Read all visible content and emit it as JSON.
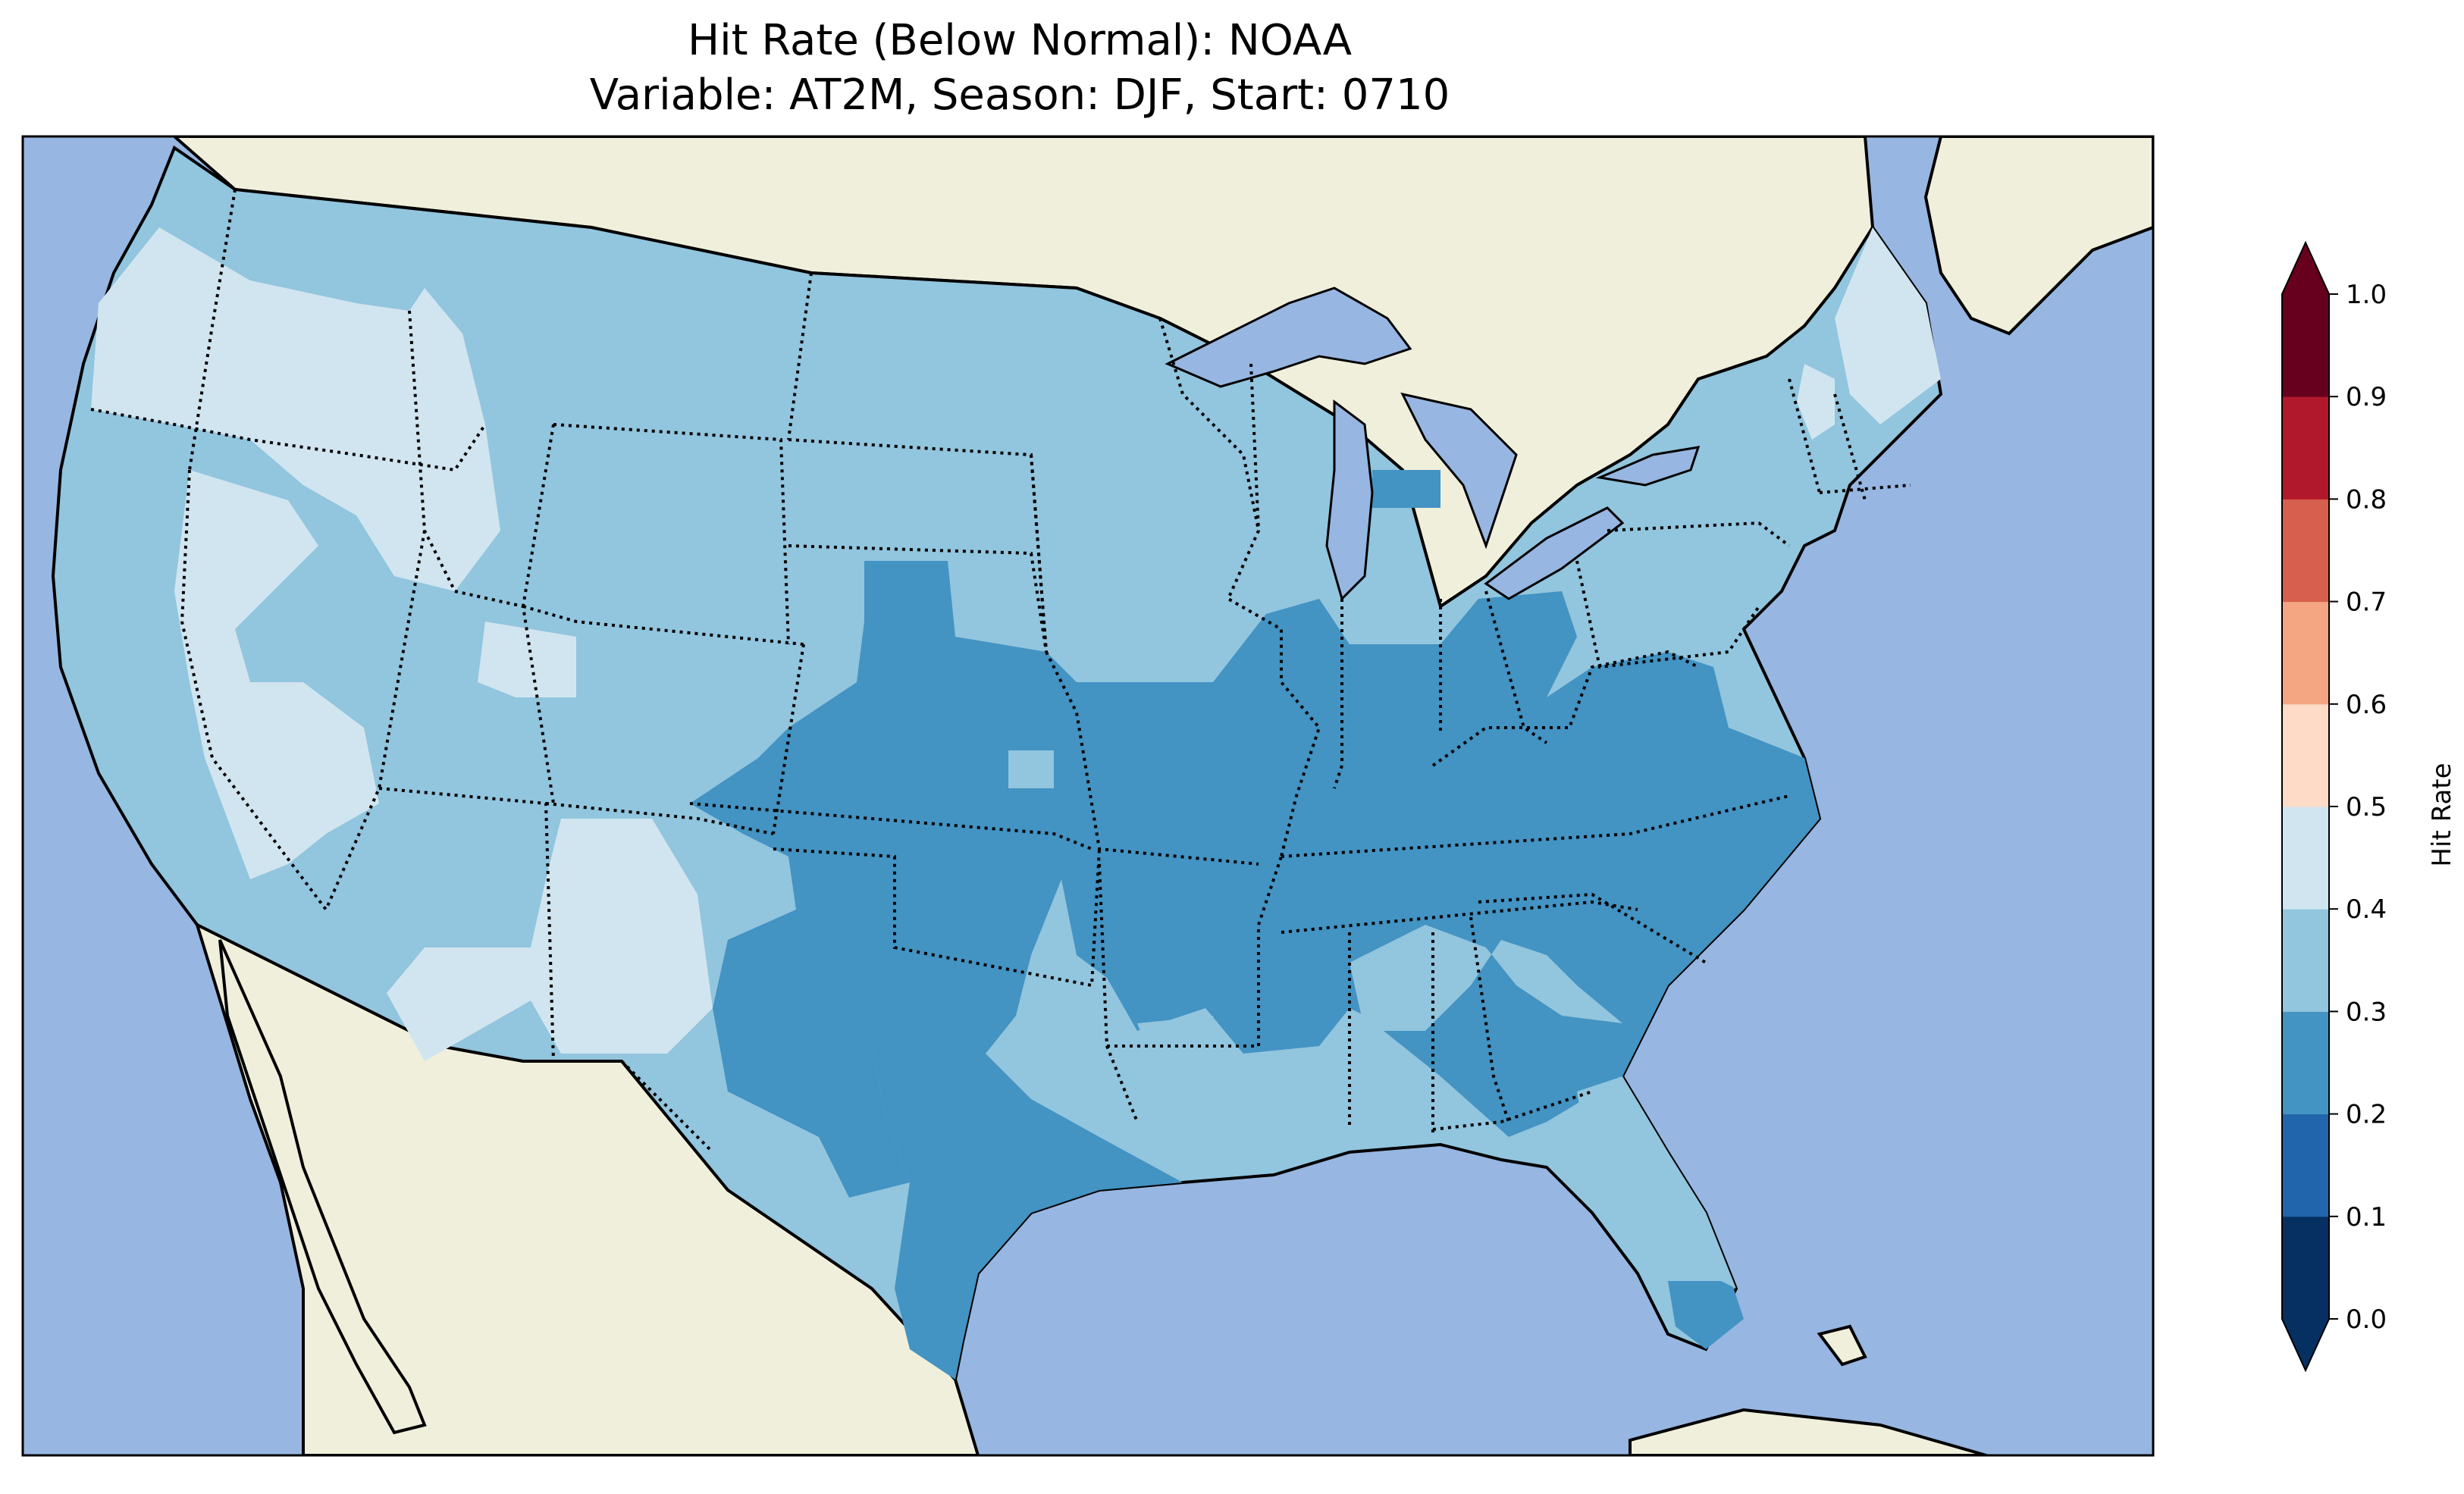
{
  "figure": {
    "title_line1": "Hit Rate (Below Normal): NOAA",
    "title_line2": "Variable: AT2M, Season: DJF, Start: 0710"
  },
  "map": {
    "ocean_color": "#97b6e1",
    "land_color": "#efefdb",
    "boundary_color": "#000000",
    "lake_color": "#97b6e1"
  },
  "colorbar": {
    "label": "Hit Rate",
    "levels": [
      0.0,
      0.1,
      0.2,
      0.3,
      0.4,
      0.5,
      0.6,
      0.7,
      0.8,
      0.9,
      1.0
    ],
    "tick_labels": [
      "0.0",
      "0.1",
      "0.2",
      "0.3",
      "0.4",
      "0.5",
      "0.6",
      "0.7",
      "0.8",
      "0.9",
      "1.0"
    ],
    "colors": [
      "#053061",
      "#2166ac",
      "#4393c3",
      "#92c5de",
      "#d1e5f0",
      "#fddbc7",
      "#f4a582",
      "#d6604d",
      "#b2182b",
      "#67001f"
    ],
    "under_color": "#053061",
    "over_color": "#67001f",
    "extend": "both"
  },
  "chart_data": {
    "type": "heatmap",
    "title": "Hit Rate (Below Normal): NOAA\nVariable: AT2M, Season: DJF, Start: 0710",
    "colorbar_label": "Hit Rate",
    "value_range": [
      0.0,
      1.0
    ],
    "regions": [
      {
        "name": "Pacific Northwest coast",
        "value_bin": "0.4-0.5"
      },
      {
        "name": "Northern Rockies / Northern Plains",
        "value_bin": "0.3-0.4"
      },
      {
        "name": "Great Basin (Nevada, Utah)",
        "value_bin": "0.4-0.5"
      },
      {
        "name": "California",
        "value_bin": "0.3-0.4"
      },
      {
        "name": "Southwest (New Mexico)",
        "value_bin": "0.4-0.5"
      },
      {
        "name": "Central / Southern Plains",
        "value_bin": "0.2-0.3"
      },
      {
        "name": "Texas",
        "value_bin": "0.2-0.3"
      },
      {
        "name": "Mississippi Valley / Ohio Valley",
        "value_bin": "0.2-0.3"
      },
      {
        "name": "Southeast (Alabama, Georgia interior)",
        "value_bin": "0.3-0.4"
      },
      {
        "name": "Carolinas",
        "value_bin": "0.2-0.3"
      },
      {
        "name": "Florida peninsula",
        "value_bin": "0.3-0.4"
      },
      {
        "name": "Northeast",
        "value_bin": "0.3-0.4"
      },
      {
        "name": "Northern Maine",
        "value_bin": "0.4-0.5"
      }
    ]
  }
}
